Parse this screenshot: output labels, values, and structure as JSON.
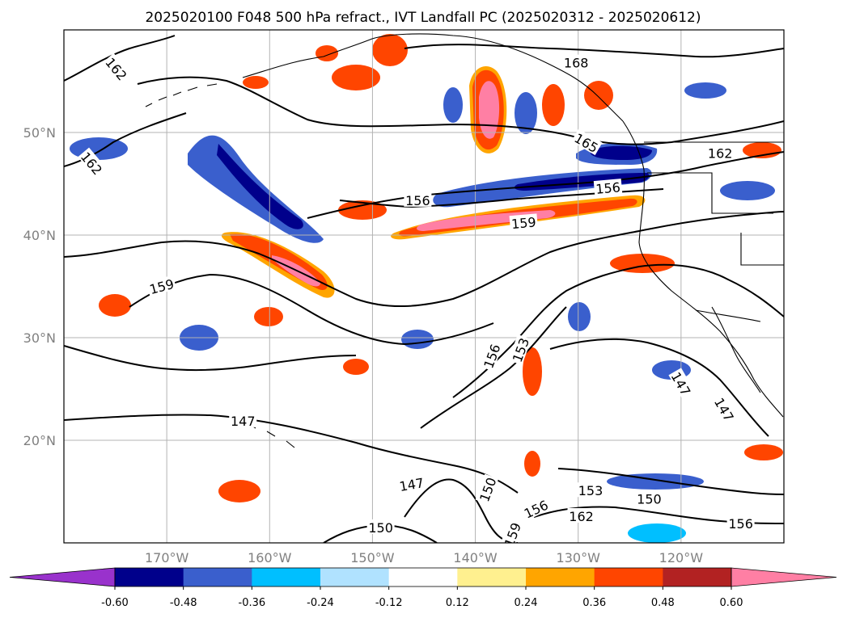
{
  "title": "2025020100 F048 500 hPa refract., IVT Landfall PC (2025020312 - 2025020612)",
  "map": {
    "lon_range": [
      -180,
      -110
    ],
    "lat_range": [
      10,
      60
    ],
    "lon_ticks": [
      {
        "value": -170,
        "label": "170°W"
      },
      {
        "value": -160,
        "label": "160°W"
      },
      {
        "value": -150,
        "label": "150°W"
      },
      {
        "value": -140,
        "label": "140°W"
      },
      {
        "value": -130,
        "label": "130°W"
      },
      {
        "value": -120,
        "label": "120°W"
      }
    ],
    "lat_ticks": [
      {
        "value": 20,
        "label": "20°N"
      },
      {
        "value": 30,
        "label": "30°N"
      },
      {
        "value": 40,
        "label": "40°N"
      },
      {
        "value": 50,
        "label": "50°N"
      }
    ],
    "grid": true,
    "contour_labels": [
      {
        "text": "162",
        "lon": -174.9,
        "lat": 56.2,
        "rot": 50
      },
      {
        "text": "162",
        "lon": -177.3,
        "lat": 47.0,
        "rot": 50
      },
      {
        "text": "168",
        "lon": -130.2,
        "lat": 56.8,
        "rot": 0
      },
      {
        "text": "165",
        "lon": -129.2,
        "lat": 49.0,
        "rot": 30
      },
      {
        "text": "162",
        "lon": -116.2,
        "lat": 48.0,
        "rot": 0
      },
      {
        "text": "156",
        "lon": -145.6,
        "lat": 43.4,
        "rot": 0
      },
      {
        "text": "156",
        "lon": -127.1,
        "lat": 44.6,
        "rot": -5
      },
      {
        "text": "159",
        "lon": -135.3,
        "lat": 41.2,
        "rot": -5
      },
      {
        "text": "159",
        "lon": -170.5,
        "lat": 35.0,
        "rot": -15
      },
      {
        "text": "156",
        "lon": -138.4,
        "lat": 28.2,
        "rot": -70
      },
      {
        "text": "153",
        "lon": -135.6,
        "lat": 28.8,
        "rot": -70
      },
      {
        "text": "147",
        "lon": -162.6,
        "lat": 21.9,
        "rot": 0
      },
      {
        "text": "147",
        "lon": -146.2,
        "lat": 15.7,
        "rot": -10
      },
      {
        "text": "150",
        "lon": -138.8,
        "lat": 15.2,
        "rot": -70
      },
      {
        "text": "153",
        "lon": -128.8,
        "lat": 15.1,
        "rot": 0
      },
      {
        "text": "150",
        "lon": -123.1,
        "lat": 14.3,
        "rot": 0
      },
      {
        "text": "156",
        "lon": -134.1,
        "lat": 13.3,
        "rot": -25
      },
      {
        "text": "162",
        "lon": -129.7,
        "lat": 12.6,
        "rot": 0
      },
      {
        "text": "150",
        "lon": -149.2,
        "lat": 11.5,
        "rot": 0
      },
      {
        "text": "159",
        "lon": -136.4,
        "lat": 10.8,
        "rot": -70
      },
      {
        "text": "156",
        "lon": -114.2,
        "lat": 11.9,
        "rot": 0
      },
      {
        "text": "147",
        "lon": -120.0,
        "lat": 25.5,
        "rot": 60
      },
      {
        "text": "147",
        "lon": -115.8,
        "lat": 23.0,
        "rot": 60
      }
    ]
  },
  "colorbar": {
    "ticks": [
      "-0.60",
      "-0.48",
      "-0.36",
      "-0.24",
      "-0.12",
      "0.12",
      "0.24",
      "0.36",
      "0.48",
      "0.60"
    ],
    "colors": [
      "#9932cc",
      "#00008b",
      "#3a5fcd",
      "#00bfff",
      "#b0e2ff",
      "#ffffff",
      "#fff08f",
      "#ffa500",
      "#ff4500",
      "#b22222",
      "#ff7fa4"
    ]
  },
  "colors": {
    "frame": "#000000",
    "grid": "#b3b3b3",
    "contour": "#000000",
    "coast": "#000000"
  }
}
